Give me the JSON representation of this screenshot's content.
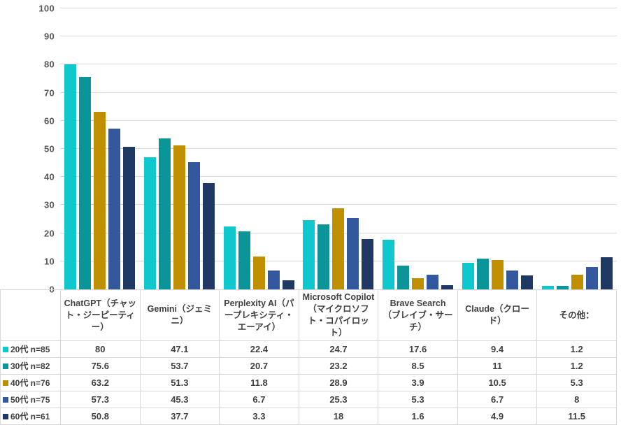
{
  "chart_data": {
    "type": "bar",
    "title": "",
    "xlabel": "",
    "ylabel": "",
    "ylim": [
      0,
      100
    ],
    "ytick_step": 10,
    "grid": true,
    "legend_position": "table-rows-left",
    "categories": [
      "ChatGPT（チャット・ジーピーティー）",
      "Gemini（ジェミニ）",
      "Perplexity AI（パープレキシティ・エーアイ）",
      "Microsoft Copilot（マイクロソフト・コパイロット）",
      "Brave Search（ブレイブ・サーチ）",
      "Claude（クロード）",
      "その他："
    ],
    "series": [
      {
        "name": "20代 n=85",
        "color": "#0ec8ce",
        "values": [
          80,
          47.1,
          22.4,
          24.7,
          17.6,
          9.4,
          1.2
        ]
      },
      {
        "name": "30代 n=82",
        "color": "#0b9598",
        "values": [
          75.6,
          53.7,
          20.7,
          23.2,
          8.5,
          11,
          1.2
        ]
      },
      {
        "name": "40代 n=76",
        "color": "#bf8f00",
        "values": [
          63.2,
          51.3,
          11.8,
          28.9,
          3.9,
          10.5,
          5.3
        ]
      },
      {
        "name": "50代 n=75",
        "color": "#33589e",
        "values": [
          57.3,
          45.3,
          6.7,
          25.3,
          5.3,
          6.7,
          8
        ]
      },
      {
        "name": "60代 n=61",
        "color": "#1f3864",
        "values": [
          50.8,
          37.7,
          3.3,
          18,
          1.6,
          4.9,
          11.5
        ]
      }
    ]
  },
  "style_colors": {
    "gridline": "#d9d9d9",
    "axis_line": "#bfbfbf",
    "table_border": "#d7d7d7",
    "axis_text": "#595959",
    "table_text": "#404040",
    "background": "#ffffff"
  }
}
